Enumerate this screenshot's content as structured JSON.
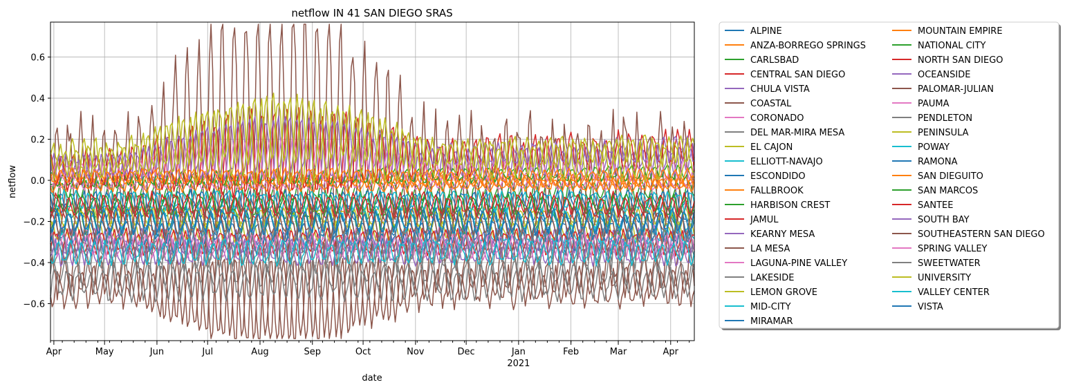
{
  "chart_data": {
    "type": "line",
    "title": "netflow IN 41 SAN DIEGO SRAS",
    "xlabel": "date",
    "ylabel": "netflow",
    "x_range": [
      "2020-03-30",
      "2021-04-15"
    ],
    "ylim": [
      -0.78,
      0.77
    ],
    "y_ticks": [
      -0.6,
      -0.4,
      -0.2,
      0.0,
      0.2,
      0.4,
      0.6
    ],
    "y_tick_labels": [
      "−0.6",
      "−0.4",
      "−0.2",
      "0.0",
      "0.2",
      "0.4",
      "0.6"
    ],
    "x_ticks": [
      {
        "date": "2020-04-01",
        "label": "Apr"
      },
      {
        "date": "2020-05-01",
        "label": "May"
      },
      {
        "date": "2020-06-01",
        "label": "Jun"
      },
      {
        "date": "2020-07-01",
        "label": "Jul"
      },
      {
        "date": "2020-08-01",
        "label": "Aug"
      },
      {
        "date": "2020-09-01",
        "label": "Sep"
      },
      {
        "date": "2020-10-01",
        "label": "Oct"
      },
      {
        "date": "2020-11-01",
        "label": "Nov"
      },
      {
        "date": "2020-12-01",
        "label": "Dec"
      },
      {
        "date": "2021-01-01",
        "label": "Jan"
      },
      {
        "date": "2021-02-01",
        "label": "Feb"
      },
      {
        "date": "2021-03-01",
        "label": "Mar"
      },
      {
        "date": "2021-04-01",
        "label": "Apr"
      }
    ],
    "x_year_label": {
      "date": "2021-01-01",
      "label": "2021"
    },
    "grid": true,
    "legend_placement": "outside right, two columns",
    "series": [
      {
        "name": "ALPINE",
        "color": "#1f77b4",
        "base": -0.15,
        "amp": 0.03,
        "drift": -0.02
      },
      {
        "name": "ANZA-BORREGO SPRINGS",
        "color": "#ff7f0e",
        "base": 0.03,
        "amp": 0.03,
        "drift": -0.04
      },
      {
        "name": "CARLSBAD",
        "color": "#2ca02c",
        "base": -0.05,
        "amp": 0.04,
        "drift": 0.0
      },
      {
        "name": "CENTRAL SAN DIEGO",
        "color": "#d62728",
        "base": -0.15,
        "amp": 0.04,
        "drift": 0.0
      },
      {
        "name": "CHULA VISTA",
        "color": "#9467bd",
        "base": -0.3,
        "amp": 0.05,
        "drift": 0.0
      },
      {
        "name": "COASTAL",
        "color": "#8c564b",
        "base": 0.05,
        "amp": 0.22,
        "drift": 0.0,
        "summer": 0.25
      },
      {
        "name": "CORONADO",
        "color": "#e377c2",
        "base": -0.02,
        "amp": 0.02,
        "drift": 0.0
      },
      {
        "name": "DEL MAR-MIRA MESA",
        "color": "#7f7f7f",
        "base": -0.45,
        "amp": 0.06,
        "drift": 0.0
      },
      {
        "name": "EL CAJON",
        "color": "#bcbd22",
        "base": -0.25,
        "amp": 0.04,
        "drift": 0.0
      },
      {
        "name": "ELLIOTT-NAVAJO",
        "color": "#17becf",
        "base": -0.3,
        "amp": 0.04,
        "drift": 0.05
      },
      {
        "name": "ESCONDIDO",
        "color": "#1f77b4",
        "base": -0.1,
        "amp": 0.04,
        "drift": 0.0
      },
      {
        "name": "FALLBROOK",
        "color": "#ff7f0e",
        "base": -0.02,
        "amp": 0.03,
        "drift": 0.0
      },
      {
        "name": "HARBISON CREST",
        "color": "#2ca02c",
        "base": -0.2,
        "amp": 0.05,
        "drift": 0.0
      },
      {
        "name": "JAMUL",
        "color": "#d62728",
        "base": -0.3,
        "amp": 0.05,
        "drift": 0.0
      },
      {
        "name": "KEARNY MESA",
        "color": "#9467bd",
        "base": 0.05,
        "amp": 0.06,
        "drift": 0.05,
        "summer": 0.08
      },
      {
        "name": "LA MESA",
        "color": "#8c564b",
        "base": -0.45,
        "amp": 0.1,
        "drift": 0.0,
        "summer": -0.12
      },
      {
        "name": "LAGUNA-PINE VALLEY",
        "color": "#e377c2",
        "base": -0.28,
        "amp": 0.05,
        "drift": 0.0
      },
      {
        "name": "LAKESIDE",
        "color": "#7f7f7f",
        "base": -0.35,
        "amp": 0.07,
        "drift": 0.0
      },
      {
        "name": "LEMON GROVE",
        "color": "#bcbd22",
        "base": -0.18,
        "amp": 0.04,
        "drift": 0.0
      },
      {
        "name": "MID-CITY",
        "color": "#17becf",
        "base": -0.2,
        "amp": 0.05,
        "drift": 0.0
      },
      {
        "name": "MIRAMAR",
        "color": "#1f77b4",
        "base": -0.25,
        "amp": 0.05,
        "drift": 0.0
      },
      {
        "name": "MOUNTAIN EMPIRE",
        "color": "#ff7f0e",
        "base": 0.02,
        "amp": 0.03,
        "drift": -0.03
      },
      {
        "name": "NATIONAL CITY",
        "color": "#2ca02c",
        "base": 0.0,
        "amp": 0.03,
        "drift": 0.04
      },
      {
        "name": "NORTH SAN DIEGO",
        "color": "#d62728",
        "base": 0.05,
        "amp": 0.08,
        "drift": 0.1,
        "summer": 0.05
      },
      {
        "name": "OCEANSIDE",
        "color": "#9467bd",
        "base": 0.07,
        "amp": 0.05,
        "drift": 0.08,
        "summer": 0.07
      },
      {
        "name": "PALOMAR-JULIAN",
        "color": "#8c564b",
        "base": -0.52,
        "amp": 0.08,
        "drift": 0.0,
        "summer": -0.05
      },
      {
        "name": "PAUMA",
        "color": "#e377c2",
        "base": 0.05,
        "amp": 0.04,
        "drift": 0.0,
        "summer": 0.06
      },
      {
        "name": "PENDLETON",
        "color": "#7f7f7f",
        "base": -0.5,
        "amp": 0.07,
        "drift": 0.0
      },
      {
        "name": "PENINSULA",
        "color": "#bcbd22",
        "base": 0.1,
        "amp": 0.06,
        "drift": 0.05,
        "summer": 0.13
      },
      {
        "name": "POWAY",
        "color": "#17becf",
        "base": -0.1,
        "amp": 0.04,
        "drift": 0.0
      },
      {
        "name": "RAMONA",
        "color": "#1f77b4",
        "base": -0.3,
        "amp": 0.05,
        "drift": 0.0
      },
      {
        "name": "SAN DIEGUITO",
        "color": "#ff7f0e",
        "base": 0.02,
        "amp": 0.03,
        "drift": 0.0
      },
      {
        "name": "SAN MARCOS",
        "color": "#2ca02c",
        "base": -0.12,
        "amp": 0.04,
        "drift": 0.0
      },
      {
        "name": "SANTEE",
        "color": "#d62728",
        "base": -0.12,
        "amp": 0.05,
        "drift": 0.0
      },
      {
        "name": "SOUTH BAY",
        "color": "#9467bd",
        "base": -0.35,
        "amp": 0.05,
        "drift": 0.0
      },
      {
        "name": "SOUTHEASTERN SAN DIEGO",
        "color": "#8c564b",
        "base": -0.2,
        "amp": 0.06,
        "drift": 0.0
      },
      {
        "name": "SPRING VALLEY",
        "color": "#e377c2",
        "base": -0.32,
        "amp": 0.05,
        "drift": 0.0
      },
      {
        "name": "SWEETWATER",
        "color": "#7f7f7f",
        "base": -0.3,
        "amp": 0.07,
        "drift": 0.0
      },
      {
        "name": "UNIVERSITY",
        "color": "#bcbd22",
        "base": 0.1,
        "amp": 0.08,
        "drift": 0.0,
        "summer": 0.1
      },
      {
        "name": "VALLEY CENTER",
        "color": "#17becf",
        "base": -0.35,
        "amp": 0.05,
        "drift": 0.0
      },
      {
        "name": "VISTA",
        "color": "#1f77b4",
        "base": -0.2,
        "amp": 0.05,
        "drift": 0.0
      }
    ]
  }
}
